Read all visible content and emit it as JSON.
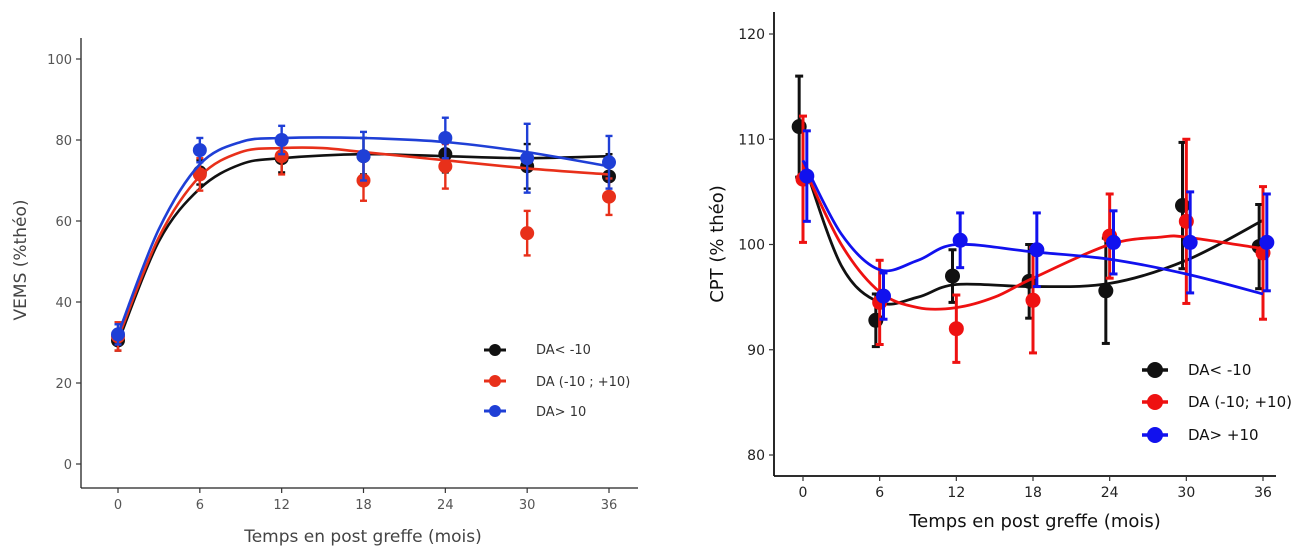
{
  "colors": {
    "black": "#111111",
    "red": "#e8301a",
    "blue": "#1f3fd6",
    "red_r": "#ee1111",
    "blue_r": "#1111ee"
  },
  "chart_data": [
    {
      "type": "line",
      "title": "",
      "xlabel": "Temps en post greffe (mois)",
      "ylabel": "VEMS (%théo)",
      "xlim": [
        -3,
        38
      ],
      "ylim": [
        -5,
        105
      ],
      "xticks": [
        0,
        6,
        12,
        18,
        24,
        30,
        36
      ],
      "yticks": [
        0,
        20,
        40,
        60,
        80,
        100
      ],
      "legend_position": "bottom-right",
      "grid": false,
      "series": [
        {
          "name": "DA< -10",
          "color": "black",
          "x": [
            0,
            6,
            12,
            18,
            24,
            30,
            36
          ],
          "y": [
            30.5,
            72,
            75.5,
            76,
            76.5,
            73.5,
            71
          ],
          "err": [
            2.5,
            3,
            3.5,
            4.5,
            4.5,
            5.5,
            5.5
          ],
          "fit": [
            [
              0,
              30
            ],
            [
              3,
              55
            ],
            [
              6,
              68
            ],
            [
              9,
              74
            ],
            [
              12,
              75.5
            ],
            [
              18,
              76.5
            ],
            [
              24,
              76
            ],
            [
              30,
              75.5
            ],
            [
              36,
              76
            ]
          ]
        },
        {
          "name": "DA (-10 ; +10)",
          "color": "red",
          "x": [
            0,
            6,
            12,
            18,
            24,
            30,
            36
          ],
          "y": [
            31.5,
            71.5,
            76,
            70,
            73.5,
            57,
            66
          ],
          "err": [
            3.5,
            4,
            4.5,
            5,
            5.5,
            5.5,
            4.5
          ],
          "fit": [
            [
              0,
              31
            ],
            [
              3,
              56
            ],
            [
              6,
              71
            ],
            [
              9,
              77
            ],
            [
              12,
              78
            ],
            [
              15,
              78
            ],
            [
              18,
              77
            ],
            [
              24,
              75
            ],
            [
              30,
              73
            ],
            [
              36,
              71.5
            ]
          ]
        },
        {
          "name": "DA> 10",
          "color": "blue",
          "x": [
            0,
            6,
            12,
            18,
            24,
            30,
            36
          ],
          "y": [
            32,
            77.5,
            80,
            76,
            80.5,
            75.5,
            74.5
          ],
          "err": [
            2.5,
            3,
            3.5,
            6,
            5,
            8.5,
            6.5
          ],
          "fit": [
            [
              0,
              32
            ],
            [
              3,
              58
            ],
            [
              6,
              74
            ],
            [
              9,
              79.5
            ],
            [
              12,
              80.5
            ],
            [
              18,
              80.5
            ],
            [
              24,
              79.5
            ],
            [
              30,
              77
            ],
            [
              36,
              73.5
            ]
          ]
        }
      ]
    },
    {
      "type": "line",
      "title": "",
      "xlabel": "Temps en post greffe (mois)",
      "ylabel": "CPT (% théo)",
      "xlim": [
        -3,
        38
      ],
      "ylim": [
        78,
        122
      ],
      "xticks": [
        0,
        6,
        12,
        18,
        24,
        30,
        36
      ],
      "yticks": [
        80,
        90,
        100,
        110,
        120
      ],
      "legend_position": "bottom-right",
      "grid": false,
      "series": [
        {
          "name": "DA< -10",
          "color": "black",
          "x": [
            -0.3,
            5.7,
            11.7,
            17.7,
            23.7,
            29.7,
            35.7
          ],
          "y": [
            111.2,
            92.8,
            97,
            96.5,
            95.6,
            103.7,
            99.8
          ],
          "err": [
            4.8,
            2.5,
            2.5,
            3.5,
            5,
            6,
            4
          ],
          "fit": [
            [
              0,
              108
            ],
            [
              3,
              98
            ],
            [
              6,
              94.5
            ],
            [
              9,
              95
            ],
            [
              12,
              96.2
            ],
            [
              18,
              96
            ],
            [
              24,
              96.3
            ],
            [
              30,
              98.5
            ],
            [
              36,
              102.3
            ]
          ]
        },
        {
          "name": "DA (-10; +10)",
          "color": "red",
          "x": [
            0,
            6,
            12,
            18,
            24,
            30,
            36
          ],
          "y": [
            106.2,
            94.5,
            92,
            94.7,
            100.8,
            102.2,
            99.2
          ],
          "err": [
            6,
            4,
            3.2,
            5,
            4,
            7.8,
            6.3
          ],
          "fit": [
            [
              0,
              107.5
            ],
            [
              3,
              100
            ],
            [
              6,
              95.5
            ],
            [
              9,
              94
            ],
            [
              12,
              94
            ],
            [
              15,
              95
            ],
            [
              18,
              96.8
            ],
            [
              24,
              100
            ],
            [
              28,
              100.7
            ],
            [
              30,
              100.7
            ],
            [
              36,
              99.6
            ]
          ]
        },
        {
          "name": "DA> +10",
          "color": "blue",
          "x": [
            0.3,
            6.3,
            12.3,
            18.3,
            24.3,
            30.3,
            36.3
          ],
          "y": [
            106.5,
            95.1,
            100.4,
            99.5,
            100.2,
            100.2,
            100.2
          ],
          "err": [
            4.3,
            2.2,
            2.6,
            3.5,
            3,
            4.8,
            4.6
          ],
          "fit": [
            [
              0,
              108
            ],
            [
              3,
              101
            ],
            [
              6,
              97.6
            ],
            [
              9,
              98.5
            ],
            [
              12,
              100
            ],
            [
              18,
              99.3
            ],
            [
              24,
              98.6
            ],
            [
              30,
              97.2
            ],
            [
              36,
              95.3
            ]
          ]
        }
      ]
    }
  ]
}
